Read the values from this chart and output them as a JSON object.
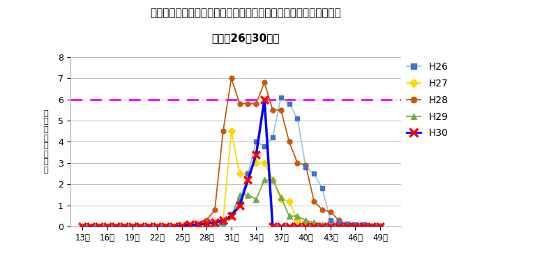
{
  "title_line1": "宮城県における一定点医療機関当たりのヘルパンギーナ患者報告数",
  "title_line2": "（平成26〜30年）",
  "ylabel": "患\n者\n報\n告\n数\n（\n人\n）",
  "xlabel_ticks": [
    13,
    16,
    19,
    22,
    25,
    28,
    31,
    34,
    37,
    40,
    43,
    46,
    49
  ],
  "xlabel_labels": [
    "13週",
    "16週",
    "19週",
    "22週",
    "25週",
    "28週",
    "31週",
    "34週",
    "37週",
    "40週",
    "43週",
    "46週",
    "49週"
  ],
  "ylim": [
    0,
    8
  ],
  "yticks": [
    0,
    1,
    2,
    3,
    4,
    5,
    6,
    7,
    8
  ],
  "threshold": 6.0,
  "threshold_color": "#FF00FF",
  "series": {
    "H26": {
      "color": "#4472C4",
      "line_color": "#9DC3E6",
      "marker": "s",
      "marker_size": 5,
      "data_weeks": [
        13,
        14,
        15,
        16,
        17,
        18,
        19,
        20,
        21,
        22,
        23,
        24,
        25,
        26,
        27,
        28,
        29,
        30,
        31,
        32,
        33,
        34,
        35,
        36,
        37,
        38,
        39,
        40,
        41,
        42,
        43,
        44,
        45,
        46,
        47,
        48,
        49
      ],
      "data_values": [
        0,
        0,
        0,
        0,
        0,
        0,
        0,
        0,
        0,
        0,
        0,
        0,
        0,
        0,
        0.05,
        0.1,
        0.15,
        0.2,
        0.6,
        1.2,
        2.5,
        4.0,
        3.8,
        4.2,
        6.1,
        5.8,
        5.1,
        2.8,
        2.5,
        1.8,
        0.3,
        0.2,
        0.15,
        0.1,
        0.1,
        0.05,
        0.05
      ]
    },
    "H27": {
      "color": "#FFD700",
      "line_color": "#FFD700",
      "marker": "D",
      "marker_size": 5,
      "data_weeks": [
        13,
        14,
        15,
        16,
        17,
        18,
        19,
        20,
        21,
        22,
        23,
        24,
        25,
        26,
        27,
        28,
        29,
        30,
        31,
        32,
        33,
        34,
        35,
        36,
        37,
        38,
        39,
        40,
        41,
        42,
        43,
        44,
        45,
        46,
        47,
        48,
        49
      ],
      "data_values": [
        0,
        0,
        0,
        0,
        0,
        0,
        0,
        0,
        0,
        0,
        0,
        0,
        0,
        0,
        0.05,
        0.1,
        0.2,
        0.3,
        4.5,
        2.5,
        2.5,
        3.0,
        3.0,
        2.2,
        1.3,
        1.2,
        0.3,
        0.2,
        0.1,
        0.05,
        0,
        0,
        0,
        0,
        0,
        0,
        0
      ]
    },
    "H28": {
      "color": "#C55A11",
      "line_color": "#C55A11",
      "marker": "o",
      "marker_size": 5,
      "data_weeks": [
        13,
        14,
        15,
        16,
        17,
        18,
        19,
        20,
        21,
        22,
        23,
        24,
        25,
        26,
        27,
        28,
        29,
        30,
        31,
        32,
        33,
        34,
        35,
        36,
        37,
        38,
        39,
        40,
        41,
        42,
        43,
        44,
        45,
        46,
        47,
        48,
        49
      ],
      "data_values": [
        0,
        0,
        0,
        0,
        0,
        0,
        0,
        0,
        0,
        0,
        0,
        0,
        0,
        0.05,
        0.15,
        0.3,
        0.8,
        4.5,
        7.0,
        5.8,
        5.8,
        5.8,
        6.8,
        5.5,
        5.5,
        4.0,
        3.0,
        2.9,
        1.2,
        0.8,
        0.7,
        0.3,
        0.1,
        0,
        0,
        0,
        0
      ]
    },
    "H29": {
      "color": "#70AD47",
      "line_color": "#70AD47",
      "marker": "^",
      "marker_size": 6,
      "data_weeks": [
        13,
        14,
        15,
        16,
        17,
        18,
        19,
        20,
        21,
        22,
        23,
        24,
        25,
        26,
        27,
        28,
        29,
        30,
        31,
        32,
        33,
        34,
        35,
        36,
        37,
        38,
        39,
        40,
        41,
        42,
        43,
        44,
        45,
        46,
        47,
        48,
        49
      ],
      "data_values": [
        0,
        0,
        0,
        0,
        0,
        0,
        0,
        0,
        0,
        0,
        0,
        0,
        0,
        0,
        0,
        0,
        0.05,
        0.1,
        0.5,
        1.5,
        1.5,
        1.3,
        2.2,
        2.2,
        1.4,
        0.5,
        0.5,
        0.3,
        0.2,
        0.1,
        0.1,
        0.1,
        0.05,
        0.05,
        0.05,
        0.05,
        0.05
      ]
    },
    "H30": {
      "color": "#FF0000",
      "line_color": "#0000FF",
      "marker": "x",
      "marker_size": 9,
      "data_weeks": [
        13,
        14,
        15,
        16,
        17,
        18,
        19,
        20,
        21,
        22,
        23,
        24,
        25,
        26,
        27,
        28,
        29,
        30,
        31,
        32,
        33,
        34,
        35,
        36,
        37,
        38,
        39,
        40,
        41,
        42,
        43,
        44,
        45,
        46,
        47,
        48,
        49
      ],
      "data_values": [
        0,
        0,
        0,
        0,
        0,
        0,
        0,
        0,
        0,
        0,
        0,
        0,
        0.05,
        0.1,
        0.1,
        0.15,
        0.2,
        0.3,
        0.5,
        1.0,
        2.2,
        3.4,
        6.0,
        0,
        0,
        0,
        0,
        0,
        0,
        0,
        0,
        0,
        0,
        0,
        0,
        0,
        0
      ]
    }
  },
  "legend_order": [
    "H26",
    "H27",
    "H28",
    "H29",
    "H30"
  ],
  "background_color": "#FFFFFF"
}
